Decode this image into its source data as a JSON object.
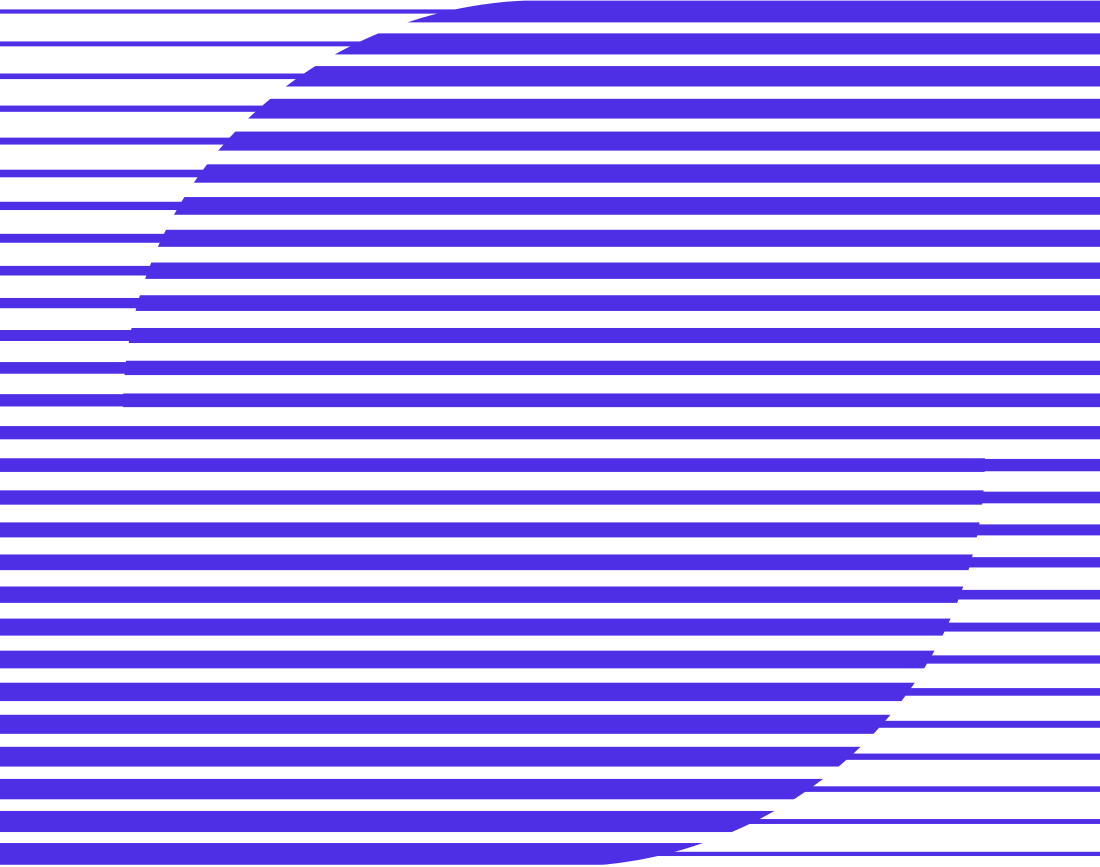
{
  "graphic": {
    "description_kind": "striped-logo-graphic",
    "colors": {
      "stripe": "#4f2fe6",
      "background": "#ffffff"
    },
    "stripe_count": 27
  }
}
